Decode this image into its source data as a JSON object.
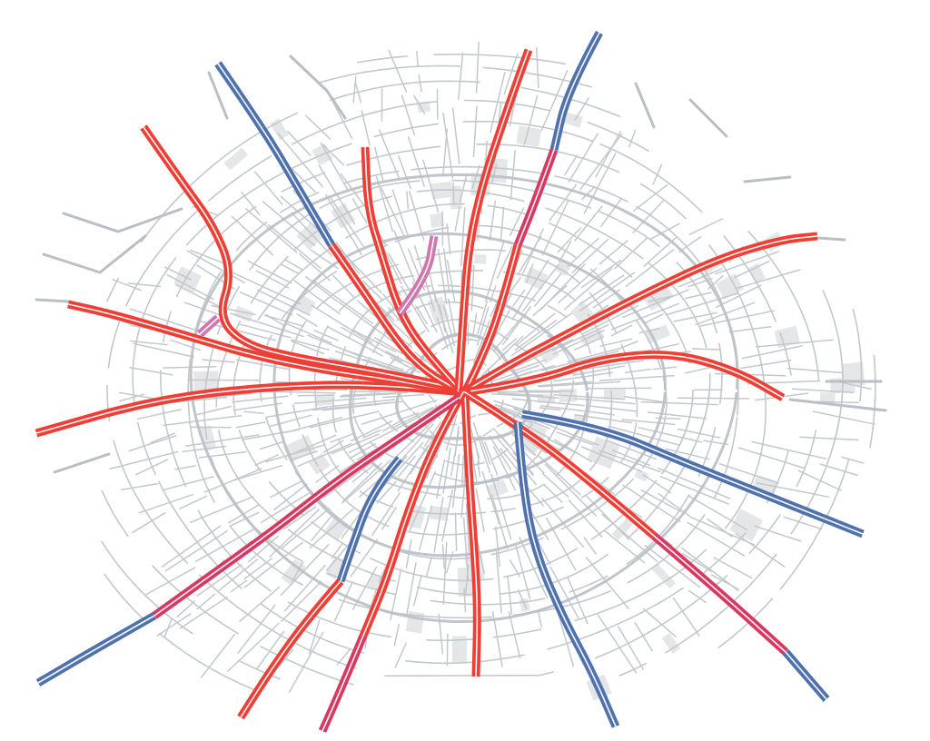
{
  "map": {
    "style": "radial-city-traffic",
    "colors": {
      "background": "#ffffff",
      "street": "#c3c8cd",
      "ring": "#b9bfc5",
      "block": "#e4e6e8",
      "congested": "#ee3f36",
      "heavy": "#d63a63",
      "moderate": "#cf78ad",
      "free_flow": "#4f72ad",
      "inner_line": "#ffffff"
    },
    "legend_levels": [
      "congested",
      "heavy",
      "moderate",
      "free_flow"
    ],
    "corridors": [
      {
        "id": "west",
        "segments": [
          {
            "level": "congested"
          }
        ]
      },
      {
        "id": "west-upper",
        "segments": [
          {
            "level": "congested"
          }
        ]
      },
      {
        "id": "northwest-far",
        "segments": [
          {
            "level": "congested"
          },
          {
            "level": "moderate"
          }
        ]
      },
      {
        "id": "northwest",
        "segments": [
          {
            "level": "free_flow"
          },
          {
            "level": "congested"
          }
        ]
      },
      {
        "id": "north-northwest",
        "segments": [
          {
            "level": "congested"
          },
          {
            "level": "moderate"
          }
        ]
      },
      {
        "id": "north",
        "segments": [
          {
            "level": "congested"
          }
        ]
      },
      {
        "id": "north-northeast",
        "segments": [
          {
            "level": "free_flow"
          },
          {
            "level": "heavy"
          },
          {
            "level": "congested"
          }
        ]
      },
      {
        "id": "east-northeast",
        "segments": [
          {
            "level": "congested"
          }
        ]
      },
      {
        "id": "east",
        "segments": [
          {
            "level": "congested"
          }
        ]
      },
      {
        "id": "east-southeast",
        "segments": [
          {
            "level": "free_flow"
          }
        ]
      },
      {
        "id": "southeast",
        "segments": [
          {
            "level": "congested"
          },
          {
            "level": "heavy"
          },
          {
            "level": "free_flow"
          }
        ]
      },
      {
        "id": "south-southeast",
        "segments": [
          {
            "level": "free_flow"
          }
        ]
      },
      {
        "id": "south",
        "segments": [
          {
            "level": "congested"
          }
        ]
      },
      {
        "id": "south-southwest",
        "segments": [
          {
            "level": "congested"
          },
          {
            "level": "heavy"
          }
        ]
      },
      {
        "id": "southwest-inner",
        "segments": [
          {
            "level": "free_flow"
          },
          {
            "level": "congested"
          }
        ]
      },
      {
        "id": "southwest",
        "segments": [
          {
            "level": "heavy"
          },
          {
            "level": "free_flow"
          }
        ]
      }
    ]
  }
}
